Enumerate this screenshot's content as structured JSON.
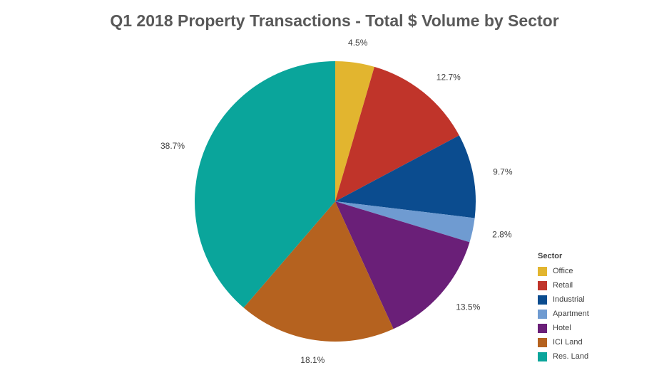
{
  "chart_data": {
    "type": "pie",
    "title": "Q1 2018 Property Transactions - Total $ Volume by Sector",
    "legend_title": "Sector",
    "legend_position": "bottom-right",
    "slices": [
      {
        "name": "Office",
        "value": 4.5,
        "label": "4.5%",
        "color": "#e2b52f"
      },
      {
        "name": "Retail",
        "value": 12.7,
        "label": "12.7%",
        "color": "#c0342a"
      },
      {
        "name": "Industrial",
        "value": 9.7,
        "label": "9.7%",
        "color": "#0b4c8f"
      },
      {
        "name": "Apartment",
        "value": 2.8,
        "label": "2.8%",
        "color": "#6f9bd1"
      },
      {
        "name": "Hotel",
        "value": 13.5,
        "label": "13.5%",
        "color": "#6a1f78"
      },
      {
        "name": "ICI Land",
        "value": 18.1,
        "label": "18.1%",
        "color": "#b5621f"
      },
      {
        "name": "Res. Land",
        "value": 38.7,
        "label": "38.7%",
        "color": "#0aa59b"
      }
    ]
  }
}
